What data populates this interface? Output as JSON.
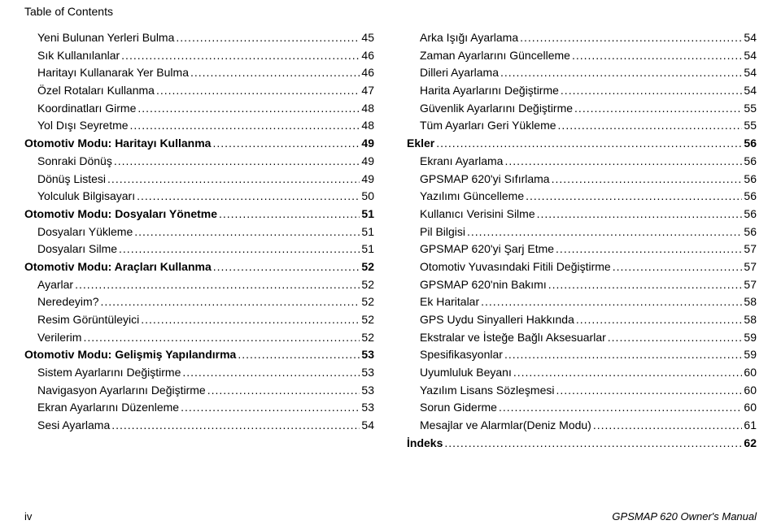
{
  "header": "Table of Contents",
  "footer_left": "iv",
  "footer_right": "GPSMAP 620 Owner's Manual",
  "left": [
    {
      "label": "Yeni Bulunan Yerleri Bulma",
      "page": "45",
      "indent": true,
      "section": false
    },
    {
      "label": "Sık Kullanılanlar",
      "page": "46",
      "indent": true,
      "section": false
    },
    {
      "label": "Haritayı Kullanarak Yer Bulma",
      "page": "46",
      "indent": true,
      "section": false
    },
    {
      "label": "Özel Rotaları Kullanma",
      "page": "47",
      "indent": true,
      "section": false
    },
    {
      "label": "Koordinatları Girme",
      "page": "48",
      "indent": true,
      "section": false
    },
    {
      "label": "Yol Dışı Seyretme",
      "page": "48",
      "indent": true,
      "section": false
    },
    {
      "label": "Otomotiv Modu: Haritayı Kullanma",
      "page": "49",
      "indent": false,
      "section": true
    },
    {
      "label": "Sonraki Dönüş",
      "page": "49",
      "indent": true,
      "section": false
    },
    {
      "label": "Dönüş Listesi",
      "page": "49",
      "indent": true,
      "section": false
    },
    {
      "label": "Yolculuk Bilgisayarı",
      "page": "50",
      "indent": true,
      "section": false
    },
    {
      "label": "Otomotiv Modu: Dosyaları Yönetme",
      "page": "51",
      "indent": false,
      "section": true
    },
    {
      "label": "Dosyaları Yükleme",
      "page": "51",
      "indent": true,
      "section": false
    },
    {
      "label": "Dosyaları Silme",
      "page": "51",
      "indent": true,
      "section": false
    },
    {
      "label": "Otomotiv Modu: Araçları Kullanma",
      "page": "52",
      "indent": false,
      "section": true
    },
    {
      "label": "Ayarlar",
      "page": "52",
      "indent": true,
      "section": false
    },
    {
      "label": "Neredeyim?",
      "page": "52",
      "indent": true,
      "section": false
    },
    {
      "label": "Resim Görüntüleyici",
      "page": "52",
      "indent": true,
      "section": false
    },
    {
      "label": "Verilerim",
      "page": "52",
      "indent": true,
      "section": false
    },
    {
      "label": "Otomotiv Modu: Gelişmiş Yapılandırma",
      "page": "53",
      "indent": false,
      "section": true
    },
    {
      "label": "Sistem Ayarlarını Değiştirme",
      "page": "53",
      "indent": true,
      "section": false
    },
    {
      "label": "Navigasyon Ayarlarını Değiştirme",
      "page": "53",
      "indent": true,
      "section": false
    },
    {
      "label": "Ekran Ayarlarını Düzenleme",
      "page": "53",
      "indent": true,
      "section": false
    },
    {
      "label": "Sesi Ayarlama",
      "page": "54",
      "indent": true,
      "section": false
    }
  ],
  "right": [
    {
      "label": "Arka Işığı Ayarlama",
      "page": "54",
      "indent": true,
      "section": false
    },
    {
      "label": "Zaman Ayarlarını Güncelleme",
      "page": "54",
      "indent": true,
      "section": false
    },
    {
      "label": "Dilleri Ayarlama",
      "page": "54",
      "indent": true,
      "section": false
    },
    {
      "label": "Harita Ayarlarını Değiştirme",
      "page": "54",
      "indent": true,
      "section": false
    },
    {
      "label": "Güvenlik Ayarlarını Değiştirme",
      "page": "55",
      "indent": true,
      "section": false
    },
    {
      "label": "Tüm Ayarları Geri Yükleme",
      "page": "55",
      "indent": true,
      "section": false
    },
    {
      "label": "Ekler",
      "page": "56",
      "indent": false,
      "section": true
    },
    {
      "label": "Ekranı Ayarlama",
      "page": "56",
      "indent": true,
      "section": false
    },
    {
      "label": "GPSMAP 620'yi Sıfırlama",
      "page": "56",
      "indent": true,
      "section": false
    },
    {
      "label": "Yazılımı Güncelleme",
      "page": "56",
      "indent": true,
      "section": false
    },
    {
      "label": "Kullanıcı Verisini Silme",
      "page": "56",
      "indent": true,
      "section": false
    },
    {
      "label": "Pil Bilgisi",
      "page": "56",
      "indent": true,
      "section": false
    },
    {
      "label": "GPSMAP 620'yi Şarj Etme",
      "page": "57",
      "indent": true,
      "section": false
    },
    {
      "label": "Otomotiv Yuvasındaki Fitili Değiştirme",
      "page": "57",
      "indent": true,
      "section": false
    },
    {
      "label": "GPSMAP 620'nin Bakımı",
      "page": "57",
      "indent": true,
      "section": false
    },
    {
      "label": "Ek Haritalar",
      "page": "58",
      "indent": true,
      "section": false
    },
    {
      "label": "GPS Uydu Sinyalleri Hakkında",
      "page": "58",
      "indent": true,
      "section": false
    },
    {
      "label": "Ekstralar ve İsteğe Bağlı Aksesuarlar",
      "page": "59",
      "indent": true,
      "section": false
    },
    {
      "label": "Spesifikasyonlar",
      "page": "59",
      "indent": true,
      "section": false
    },
    {
      "label": "Uyumluluk Beyanı",
      "page": "60",
      "indent": true,
      "section": false
    },
    {
      "label": "Yazılım Lisans Sözleşmesi",
      "page": "60",
      "indent": true,
      "section": false
    },
    {
      "label": "Sorun Giderme",
      "page": "60",
      "indent": true,
      "section": false
    },
    {
      "label": "Mesajlar ve Alarmlar(Deniz Modu)",
      "page": "61",
      "indent": true,
      "section": false
    },
    {
      "label": "İndeks",
      "page": "62",
      "indent": false,
      "section": true
    }
  ]
}
